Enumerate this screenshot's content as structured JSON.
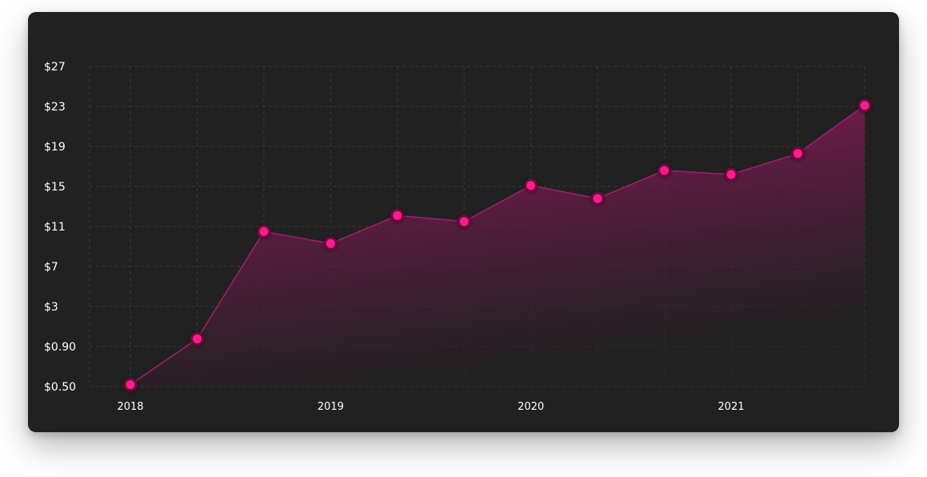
{
  "chart_data": {
    "type": "area",
    "title": "",
    "xlabel": "",
    "ylabel": "",
    "x": [
      "2018-01",
      "2018-05",
      "2018-09",
      "2019-01",
      "2019-05",
      "2019-09",
      "2020-01",
      "2020-05",
      "2020-09",
      "2021-01",
      "2021-05",
      "2021-09"
    ],
    "series": [
      {
        "values": [
          0.52,
          1.3,
          10.5,
          9.3,
          12.1,
          11.5,
          15.1,
          13.8,
          16.6,
          16.2,
          18.3,
          23.1
        ]
      }
    ],
    "y_ticks": [
      "$0.50",
      "$0.90",
      "$3",
      "$7",
      "$11",
      "$15",
      "$19",
      "$23",
      "$27"
    ],
    "x_ticks": [
      "2018",
      "2019",
      "2020",
      "2021"
    ],
    "grid": true,
    "legend": "none",
    "colors": {
      "line": "#a0206a",
      "marker_fill": "#ff1a8c",
      "marker_stroke": "#6a0a3e",
      "area_top": "#b0156e",
      "area_bottom": "#212121",
      "background": "#212121"
    }
  }
}
